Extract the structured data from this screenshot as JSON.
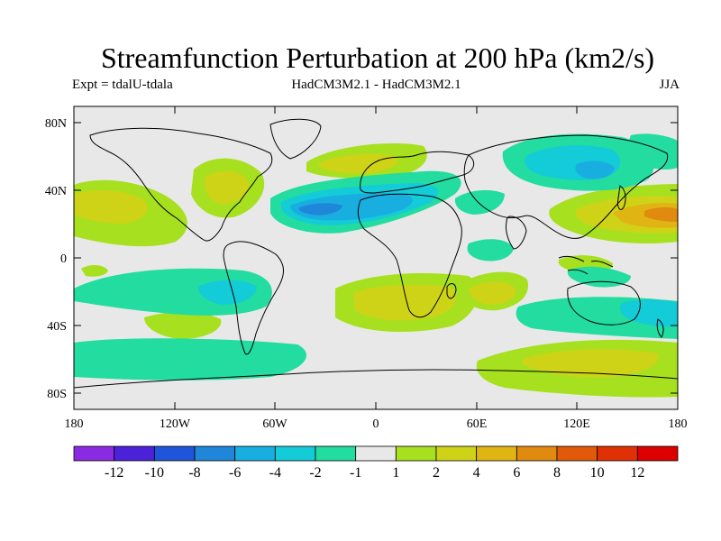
{
  "title": "Streamfunction Perturbation at 200 hPa (km2/s)",
  "subtitle_left": "Expt = tdalU-tdala",
  "subtitle_center": "HadCM3M2.1 - HadCM3M2.1",
  "subtitle_right": "JJA",
  "lat_labels": [
    "80N",
    "40N",
    "0",
    "40S",
    "80S"
  ],
  "lon_labels": [
    "180",
    "120W",
    "60W",
    "0",
    "60E",
    "120E",
    "180"
  ],
  "colorbar": {
    "labels": [
      "-12",
      "-10",
      "-8",
      "-6",
      "-4",
      "-2",
      "-1",
      "1",
      "2",
      "4",
      "6",
      "8",
      "10",
      "12"
    ],
    "colors": [
      "#8a2be2",
      "#4b22d8",
      "#1f55d9",
      "#1f86d9",
      "#19aee0",
      "#14cbd8",
      "#23dca0",
      "#e8e8e8",
      "#a6e01e",
      "#cfd318",
      "#e0b413",
      "#e08a10",
      "#e05a0a",
      "#e03005",
      "#dc0000"
    ]
  }
}
